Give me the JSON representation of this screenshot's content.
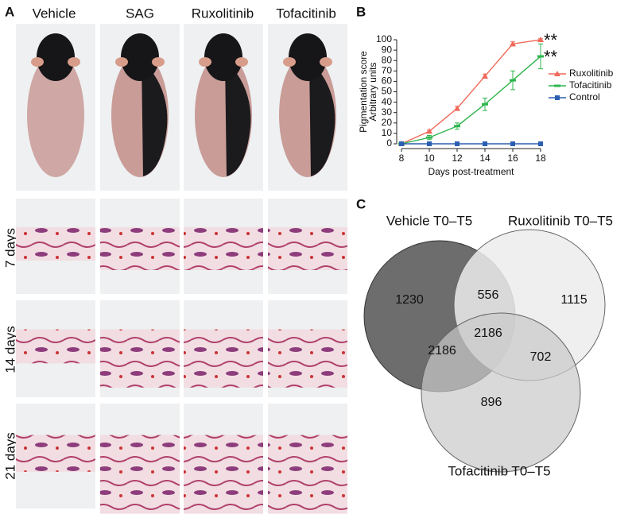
{
  "panel_labels": [
    "A",
    "B",
    "C"
  ],
  "panel_a": {
    "columns": [
      "Vehicle",
      "SAG",
      "Ruxolitinib",
      "Tofacitinib"
    ],
    "rows": [
      "7 days",
      "14 days",
      "21 days"
    ]
  },
  "chart_data": {
    "type": "line",
    "x_label": "Days post-treatment",
    "y_label": [
      "Pigmentation score",
      "Arbitrary units"
    ],
    "x": [
      8,
      10,
      12,
      14,
      16,
      18
    ],
    "series": [
      {
        "name": "Ruxolitinib",
        "color": "#ef6a5a",
        "marker": "triangle",
        "values": [
          0,
          12,
          34,
          65,
          96,
          100
        ],
        "errors": [
          0,
          1,
          2,
          2,
          2,
          1
        ]
      },
      {
        "name": "Tofacitinib",
        "color": "#2fb54e",
        "marker": "dash",
        "values": [
          0,
          6,
          17,
          38,
          61,
          84
        ],
        "errors": [
          0,
          2,
          3,
          6,
          9,
          12
        ]
      },
      {
        "name": "Control",
        "color": "#2c5fb2",
        "marker": "square",
        "values": [
          0,
          0,
          0,
          0,
          0,
          0
        ],
        "errors": [
          0,
          0,
          0,
          0,
          0,
          0
        ]
      }
    ],
    "annotations": [
      "**",
      "**"
    ],
    "xlim": [
      8,
      18
    ],
    "xticks": [
      8,
      10,
      12,
      14,
      16,
      18
    ],
    "ylim": [
      0,
      100
    ],
    "yticks": [
      0,
      10,
      20,
      30,
      40,
      50,
      60,
      70,
      80,
      90,
      100
    ],
    "grid": false,
    "legend": "right"
  },
  "venn": {
    "sets": [
      "Vehicle T0–T5",
      "Ruxolitinib T0–T5",
      "Tofacitinib T0–T5"
    ],
    "regions": [
      1230,
      556,
      1115,
      2186,
      2186,
      702,
      896
    ]
  }
}
